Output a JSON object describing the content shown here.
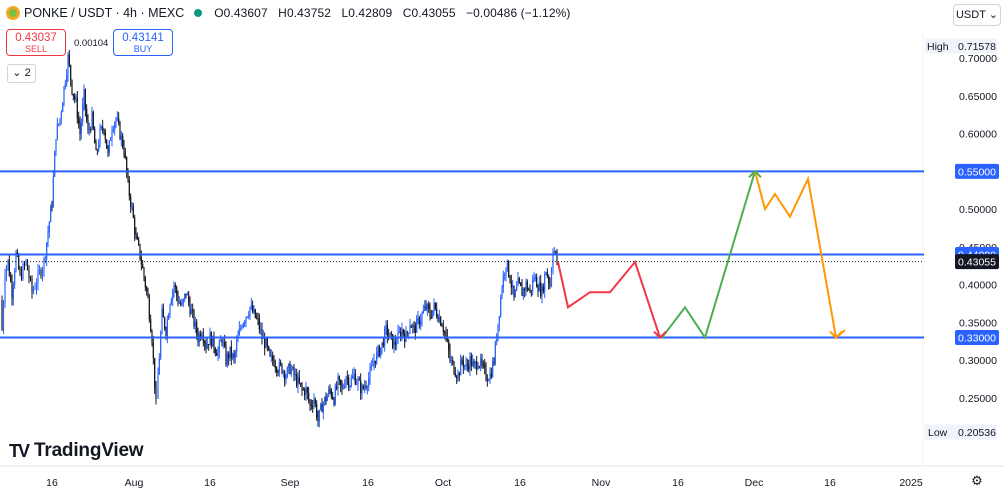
{
  "header": {
    "symbol": "PONKE / USDT · 4h · MEXC",
    "ohlc": {
      "o": "O0.43607",
      "h": "H0.43752",
      "l": "L0.42809",
      "c": "C0.43055",
      "chg": "−0.00486 (−1.12%)"
    }
  },
  "trade": {
    "sell_price": "0.43037",
    "sell_label": "SELL",
    "buy_price": "0.43141",
    "buy_label": "BUY",
    "spread": "0.00104"
  },
  "indicators_toggle": "2",
  "currency_button": "USDT",
  "brand": "TradingView",
  "colors": {
    "up": "#2962ff",
    "down": "#131722",
    "level": "#2962ff",
    "arrow_red": "#f23645",
    "arrow_green": "#4caf50",
    "arrow_orange": "#ff9800",
    "label_blue": "#2962ff",
    "label_black": "#131722"
  },
  "chart_data": {
    "type": "candlestick",
    "timeframe": "4h",
    "ylim": [
      0.195,
      0.72
    ],
    "y_ticks": [
      "0.70000",
      "0.65000",
      "0.60000",
      "0.50000",
      "0.45000",
      "0.40000",
      "0.35000",
      "0.30000",
      "0.25000"
    ],
    "x_ticks": [
      "16",
      "Aug",
      "16",
      "Sep",
      "16",
      "Oct",
      "16",
      "Nov",
      "16",
      "Dec",
      "16",
      "2025"
    ],
    "high_label": "High",
    "high_value": "0.71578",
    "low_label": "Low",
    "low_value": "0.20536",
    "last_price": "0.43055",
    "levels": [
      {
        "label": "0.55000",
        "value": 0.55
      },
      {
        "label": "0.44000",
        "value": 0.44
      },
      {
        "label": "0.33000",
        "value": 0.33
      }
    ],
    "price_path": [
      [
        0,
        0.38
      ],
      [
        2,
        0.34
      ],
      [
        5,
        0.42
      ],
      [
        8,
        0.43
      ],
      [
        12,
        0.39
      ],
      [
        16,
        0.44
      ],
      [
        20,
        0.41
      ],
      [
        26,
        0.43
      ],
      [
        32,
        0.39
      ],
      [
        38,
        0.41
      ],
      [
        44,
        0.43
      ],
      [
        48,
        0.47
      ],
      [
        52,
        0.51
      ],
      [
        56,
        0.6
      ],
      [
        60,
        0.62
      ],
      [
        64,
        0.66
      ],
      [
        68,
        0.7
      ],
      [
        72,
        0.66
      ],
      [
        76,
        0.64
      ],
      [
        80,
        0.6
      ],
      [
        84,
        0.65
      ],
      [
        88,
        0.6
      ],
      [
        92,
        0.62
      ],
      [
        96,
        0.57
      ],
      [
        100,
        0.6
      ],
      [
        104,
        0.61
      ],
      [
        108,
        0.57
      ],
      [
        112,
        0.61
      ],
      [
        116,
        0.62
      ],
      [
        120,
        0.6
      ],
      [
        124,
        0.58
      ],
      [
        128,
        0.53
      ],
      [
        132,
        0.5
      ],
      [
        136,
        0.46
      ],
      [
        140,
        0.44
      ],
      [
        144,
        0.41
      ],
      [
        148,
        0.38
      ],
      [
        152,
        0.33
      ],
      [
        156,
        0.24
      ],
      [
        158,
        0.28
      ],
      [
        162,
        0.36
      ],
      [
        166,
        0.34
      ],
      [
        170,
        0.38
      ],
      [
        174,
        0.4
      ],
      [
        178,
        0.38
      ],
      [
        182,
        0.37
      ],
      [
        186,
        0.39
      ],
      [
        190,
        0.37
      ],
      [
        194,
        0.35
      ],
      [
        198,
        0.33
      ],
      [
        202,
        0.34
      ],
      [
        206,
        0.32
      ],
      [
        210,
        0.33
      ],
      [
        214,
        0.32
      ],
      [
        218,
        0.31
      ],
      [
        222,
        0.33
      ],
      [
        226,
        0.3
      ],
      [
        230,
        0.31
      ],
      [
        234,
        0.3
      ],
      [
        238,
        0.33
      ],
      [
        242,
        0.35
      ],
      [
        246,
        0.36
      ],
      [
        250,
        0.37
      ],
      [
        254,
        0.36
      ],
      [
        258,
        0.35
      ],
      [
        262,
        0.33
      ],
      [
        266,
        0.32
      ],
      [
        270,
        0.3
      ],
      [
        274,
        0.3
      ],
      [
        278,
        0.29
      ],
      [
        282,
        0.29
      ],
      [
        286,
        0.28
      ],
      [
        290,
        0.29
      ],
      [
        294,
        0.28
      ],
      [
        298,
        0.27
      ],
      [
        302,
        0.26
      ],
      [
        306,
        0.26
      ],
      [
        310,
        0.24
      ],
      [
        314,
        0.25
      ],
      [
        318,
        0.22
      ],
      [
        322,
        0.24
      ],
      [
        326,
        0.25
      ],
      [
        330,
        0.26
      ],
      [
        334,
        0.25
      ],
      [
        338,
        0.27
      ],
      [
        342,
        0.26
      ],
      [
        346,
        0.28
      ],
      [
        350,
        0.27
      ],
      [
        354,
        0.28
      ],
      [
        358,
        0.27
      ],
      [
        362,
        0.26
      ],
      [
        366,
        0.27
      ],
      [
        370,
        0.28
      ],
      [
        374,
        0.3
      ],
      [
        378,
        0.31
      ],
      [
        382,
        0.32
      ],
      [
        386,
        0.34
      ],
      [
        390,
        0.33
      ],
      [
        394,
        0.32
      ],
      [
        398,
        0.33
      ],
      [
        402,
        0.34
      ],
      [
        406,
        0.33
      ],
      [
        410,
        0.35
      ],
      [
        414,
        0.34
      ],
      [
        418,
        0.35
      ],
      [
        422,
        0.36
      ],
      [
        426,
        0.37
      ],
      [
        430,
        0.36
      ],
      [
        434,
        0.37
      ],
      [
        438,
        0.36
      ],
      [
        442,
        0.35
      ],
      [
        446,
        0.33
      ],
      [
        450,
        0.3
      ],
      [
        454,
        0.29
      ],
      [
        458,
        0.28
      ],
      [
        462,
        0.3
      ],
      [
        466,
        0.29
      ],
      [
        470,
        0.3
      ],
      [
        474,
        0.29
      ],
      [
        478,
        0.3
      ],
      [
        482,
        0.29
      ],
      [
        486,
        0.28
      ],
      [
        490,
        0.28
      ],
      [
        494,
        0.3
      ],
      [
        498,
        0.35
      ],
      [
        502,
        0.4
      ],
      [
        506,
        0.43
      ],
      [
        510,
        0.41
      ],
      [
        514,
        0.38
      ],
      [
        518,
        0.4
      ],
      [
        522,
        0.39
      ],
      [
        526,
        0.4
      ],
      [
        530,
        0.39
      ],
      [
        534,
        0.41
      ],
      [
        538,
        0.4
      ],
      [
        542,
        0.39
      ],
      [
        546,
        0.42
      ],
      [
        550,
        0.4
      ],
      [
        553,
        0.45
      ],
      [
        557,
        0.431
      ]
    ],
    "projections": [
      {
        "name": "red",
        "color": "#f23645",
        "points": [
          [
            558,
            0.43
          ],
          [
            568,
            0.37
          ],
          [
            590,
            0.39
          ],
          [
            610,
            0.39
          ],
          [
            635,
            0.43
          ],
          [
            660,
            0.33
          ]
        ]
      },
      {
        "name": "green",
        "color": "#4caf50",
        "points": [
          [
            662,
            0.33
          ],
          [
            685,
            0.37
          ],
          [
            705,
            0.33
          ],
          [
            755,
            0.55
          ]
        ]
      },
      {
        "name": "orange",
        "color": "#ff9800",
        "points": [
          [
            755,
            0.55
          ],
          [
            765,
            0.5
          ],
          [
            775,
            0.52
          ],
          [
            790,
            0.49
          ],
          [
            808,
            0.54
          ],
          [
            836,
            0.33
          ],
          [
            845,
            0.34
          ]
        ]
      }
    ]
  }
}
